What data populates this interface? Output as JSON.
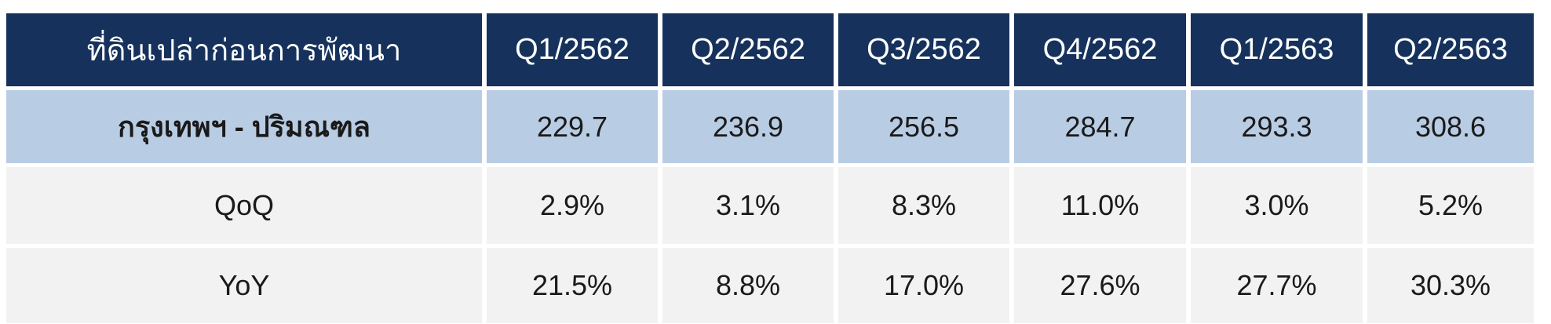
{
  "table": {
    "header": [
      "ที่ดินเปล่าก่อนการพัฒนา",
      "Q1/2562",
      "Q2/2562",
      "Q3/2562",
      "Q4/2562",
      "Q1/2563",
      "Q2/2563"
    ],
    "rows": [
      [
        "กรุงเทพฯ - ปริมณฑล",
        "229.7",
        "236.9",
        "256.5",
        "284.7",
        "293.3",
        "308.6"
      ],
      [
        "QoQ",
        "2.9%",
        "3.1%",
        "8.3%",
        "11.0%",
        "3.0%",
        "5.2%"
      ],
      [
        "YoY",
        "21.5%",
        "8.8%",
        "17.0%",
        "27.6%",
        "27.7%",
        "30.3%"
      ]
    ]
  },
  "colors": {
    "header_bg": "#16325c",
    "highlight_row_bg": "#b8cce4",
    "row_bg": "#f2f2f2"
  }
}
